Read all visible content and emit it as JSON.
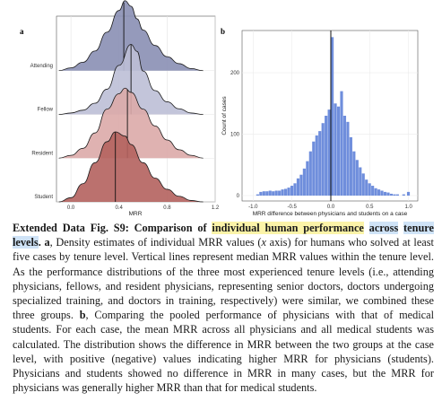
{
  "figure": {
    "panel_a_label": "a",
    "panel_b_label": "b"
  },
  "chart_data": [
    {
      "type": "area",
      "subtype": "ridgeline-density",
      "xlabel": "MRR",
      "xlim": [
        -0.12,
        1.2
      ],
      "xticks": [
        0.0,
        0.4,
        0.8,
        1.2
      ],
      "xtick_labels": [
        "0.0",
        "0.4",
        "0.8",
        "1.2"
      ],
      "grid": true,
      "categories": [
        "Attending",
        "Fellow",
        "Resident",
        "Student"
      ],
      "series": [
        {
          "name": "Attending",
          "color": "#8a8fb4",
          "median": 0.44,
          "x": [
            -0.1,
            0.0,
            0.1,
            0.2,
            0.3,
            0.4,
            0.45,
            0.5,
            0.55,
            0.6,
            0.7,
            0.8,
            0.9,
            1.0,
            1.1
          ],
          "density": [
            0.0,
            0.04,
            0.12,
            0.28,
            0.55,
            0.86,
            1.0,
            0.92,
            0.74,
            0.58,
            0.36,
            0.2,
            0.1,
            0.03,
            0.0
          ]
        },
        {
          "name": "Fellow",
          "color": "#bcbfd6",
          "median": 0.5,
          "x": [
            -0.1,
            0.0,
            0.1,
            0.2,
            0.3,
            0.4,
            0.5,
            0.55,
            0.6,
            0.7,
            0.8,
            0.9,
            1.0,
            1.1
          ],
          "density": [
            0.0,
            0.02,
            0.06,
            0.16,
            0.36,
            0.7,
            1.0,
            0.9,
            0.62,
            0.34,
            0.18,
            0.08,
            0.02,
            0.0
          ]
        },
        {
          "name": "Resident",
          "color": "#dbaaa8",
          "median": 0.47,
          "x": [
            -0.1,
            0.0,
            0.1,
            0.2,
            0.3,
            0.4,
            0.45,
            0.5,
            0.6,
            0.7,
            0.8,
            0.9,
            1.0,
            1.1
          ],
          "density": [
            0.0,
            0.04,
            0.14,
            0.36,
            0.7,
            0.92,
            1.0,
            0.94,
            0.7,
            0.46,
            0.26,
            0.12,
            0.04,
            0.0
          ]
        },
        {
          "name": "Student",
          "color": "#b4625e",
          "median": 0.37,
          "x": [
            -0.1,
            0.0,
            0.1,
            0.2,
            0.3,
            0.37,
            0.45,
            0.5,
            0.6,
            0.7,
            0.8,
            0.9,
            1.0,
            1.1
          ],
          "density": [
            0.0,
            0.06,
            0.26,
            0.56,
            0.86,
            1.0,
            0.94,
            0.82,
            0.56,
            0.34,
            0.18,
            0.08,
            0.02,
            0.0
          ]
        }
      ]
    },
    {
      "type": "bar",
      "subtype": "histogram",
      "xlabel": "MRR difference between physicians and students on a case",
      "ylabel": "Count of cases",
      "xlim": [
        -1.05,
        1.05
      ],
      "ylim": [
        0,
        260
      ],
      "xticks": [
        -1.0,
        -0.5,
        0.0,
        0.5,
        1.0
      ],
      "xtick_labels": [
        "-1.0",
        "-0.5",
        "0.0",
        "0.5",
        "1.0"
      ],
      "yticks": [
        0,
        100,
        200
      ],
      "ytick_labels": [
        "0",
        "100",
        "200"
      ],
      "grid": true,
      "vline": 0.0,
      "color": "#6f8edc",
      "bin_width": 0.04,
      "bins": [
        {
          "x": -0.94,
          "count": 2
        },
        {
          "x": -0.9,
          "count": 6
        },
        {
          "x": -0.86,
          "count": 7
        },
        {
          "x": -0.82,
          "count": 7
        },
        {
          "x": -0.78,
          "count": 8
        },
        {
          "x": -0.74,
          "count": 7
        },
        {
          "x": -0.7,
          "count": 8
        },
        {
          "x": -0.66,
          "count": 8
        },
        {
          "x": -0.62,
          "count": 10
        },
        {
          "x": -0.58,
          "count": 11
        },
        {
          "x": -0.54,
          "count": 13
        },
        {
          "x": -0.5,
          "count": 16
        },
        {
          "x": -0.46,
          "count": 20
        },
        {
          "x": -0.42,
          "count": 28
        },
        {
          "x": -0.38,
          "count": 34
        },
        {
          "x": -0.34,
          "count": 44
        },
        {
          "x": -0.3,
          "count": 56
        },
        {
          "x": -0.26,
          "count": 72
        },
        {
          "x": -0.22,
          "count": 88
        },
        {
          "x": -0.18,
          "count": 98
        },
        {
          "x": -0.14,
          "count": 105
        },
        {
          "x": -0.1,
          "count": 118
        },
        {
          "x": -0.06,
          "count": 130
        },
        {
          "x": -0.02,
          "count": 140
        },
        {
          "x": 0.02,
          "count": 258
        },
        {
          "x": 0.06,
          "count": 150
        },
        {
          "x": 0.1,
          "count": 145
        },
        {
          "x": 0.14,
          "count": 170
        },
        {
          "x": 0.18,
          "count": 130
        },
        {
          "x": 0.22,
          "count": 120
        },
        {
          "x": 0.26,
          "count": 95
        },
        {
          "x": 0.3,
          "count": 72
        },
        {
          "x": 0.34,
          "count": 58
        },
        {
          "x": 0.38,
          "count": 46
        },
        {
          "x": 0.42,
          "count": 36
        },
        {
          "x": 0.46,
          "count": 26
        },
        {
          "x": 0.5,
          "count": 20
        },
        {
          "x": 0.54,
          "count": 16
        },
        {
          "x": 0.58,
          "count": 12
        },
        {
          "x": 0.62,
          "count": 10
        },
        {
          "x": 0.66,
          "count": 8
        },
        {
          "x": 0.7,
          "count": 6
        },
        {
          "x": 0.74,
          "count": 5
        },
        {
          "x": 0.78,
          "count": 3
        },
        {
          "x": 0.82,
          "count": 2
        },
        {
          "x": 0.86,
          "count": 2
        },
        {
          "x": 0.94,
          "count": 2
        },
        {
          "x": 1.0,
          "count": 6
        }
      ]
    }
  ],
  "caption": {
    "fig_label": "Extended Data Fig. S9",
    "colon": ": ",
    "title_plain": "Comparison of ",
    "title_hl1": "individual human performance",
    "title_hl2_a": "across",
    "title_space": " ",
    "title_hl2_b": "tenure levels",
    "title_end": ". ",
    "panel_a": "a",
    "text_a1": ", Density estimates of individual MRR values (",
    "text_a_x": "x",
    "text_a2": " axis) for humans who solved at least five cases by tenure level. Vertical lines represent median MRR values within the tenure level. As the performance distributions of the three most experienced tenure levels (i.e., attending physicians, fellows, and resident physicians, representing senior doctors, doctors undergoing specialized training, and doctors in training, respectively) were similar, we combined these three groups. ",
    "panel_b": "b",
    "text_b": ", Comparing the pooled performance of physicians with that of medical students. For each case, the mean MRR across all physicians and all medical students was calculated. The distribution shows the difference in MRR between the two groups at the case level, with positive (negative) values indicating higher MRR for physicians (students). Physicians and students showed no difference in MRR in many cases, but the MRR for physicians was generally higher MRR than that for medical students."
  }
}
